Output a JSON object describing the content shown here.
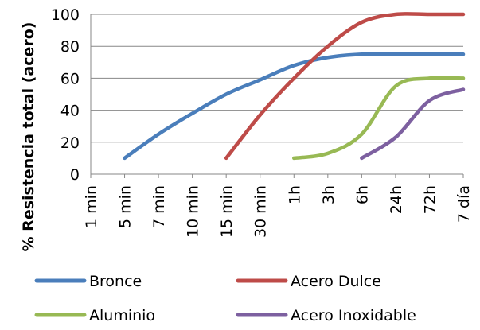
{
  "chart_data": {
    "type": "line",
    "title": "",
    "xlabel": "",
    "ylabel": "% Resistencia total (acero)",
    "categories": [
      "1 min",
      "5 min",
      "7 min",
      "10 min",
      "15 min",
      "30 min",
      "1h",
      "3h",
      "6h",
      "24h",
      "72h",
      "7 día"
    ],
    "ylim": [
      0,
      100
    ],
    "yticks": [
      0,
      20,
      40,
      60,
      80,
      100
    ],
    "grid": true,
    "legend_position": "bottom",
    "colors": {
      "Bronce": "#4A7EBB",
      "Acero Dulce": "#BE4B48",
      "Aluminio": "#98B954",
      "Acero Inoxidable": "#7D60A0"
    },
    "series": [
      {
        "name": "Bronce",
        "values": [
          null,
          10,
          25,
          38,
          50,
          59,
          68,
          73,
          75,
          75,
          75,
          75
        ]
      },
      {
        "name": "Acero Dulce",
        "values": [
          null,
          null,
          null,
          null,
          10,
          37,
          60,
          80,
          95,
          100,
          100,
          100
        ]
      },
      {
        "name": "Aluminio",
        "values": [
          null,
          null,
          null,
          null,
          null,
          null,
          10,
          13,
          25,
          55,
          60,
          60
        ]
      },
      {
        "name": "Acero Inoxidable",
        "values": [
          null,
          null,
          null,
          null,
          null,
          null,
          null,
          null,
          10,
          23,
          46,
          53
        ]
      }
    ]
  }
}
